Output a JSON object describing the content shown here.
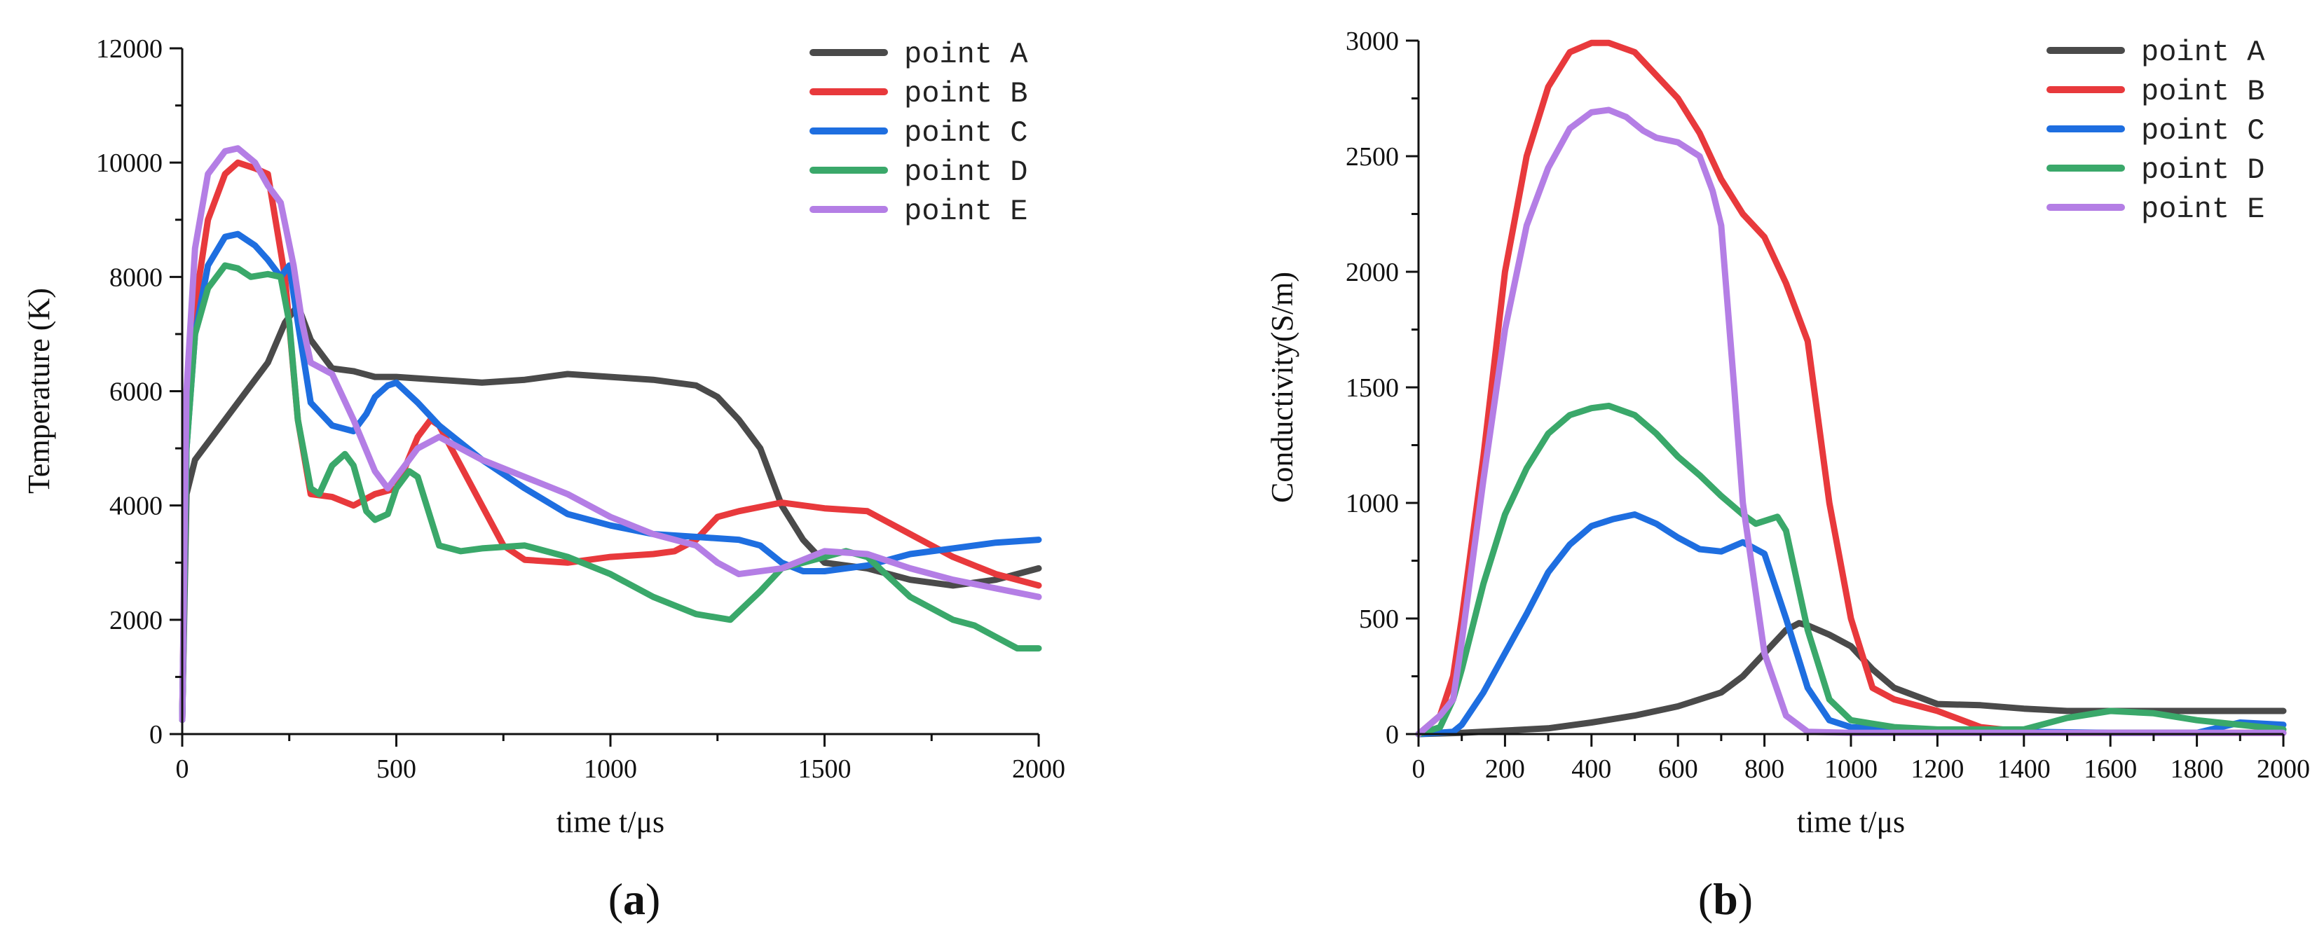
{
  "chart_data": [
    {
      "type": "line",
      "panel_label": "(a)",
      "xlabel": "time t/μs",
      "ylabel": "Temperature (K)",
      "xlim": [
        0,
        2000
      ],
      "ylim": [
        0,
        12000
      ],
      "xticks": [
        0,
        500,
        1000,
        1500,
        2000
      ],
      "yticks": [
        0,
        2000,
        4000,
        6000,
        8000,
        10000,
        12000
      ],
      "legend_position": "top-right",
      "series": [
        {
          "name": "point A",
          "color": "#4a4a4a",
          "x": [
            0,
            10,
            30,
            60,
            100,
            150,
            200,
            240,
            270,
            300,
            350,
            400,
            450,
            500,
            600,
            700,
            800,
            900,
            1000,
            1100,
            1200,
            1250,
            1300,
            1350,
            1400,
            1450,
            1500,
            1600,
            1700,
            1800,
            1900,
            2000
          ],
          "y": [
            250,
            4200,
            4800,
            5100,
            5500,
            6000,
            6500,
            7200,
            7500,
            6900,
            6400,
            6350,
            6250,
            6250,
            6200,
            6150,
            6200,
            6300,
            6250,
            6200,
            6100,
            5900,
            5500,
            5000,
            4000,
            3400,
            3000,
            2900,
            2700,
            2600,
            2700,
            2900
          ]
        },
        {
          "name": "point B",
          "color": "#e8393c",
          "x": [
            0,
            10,
            30,
            60,
            100,
            130,
            170,
            200,
            240,
            270,
            300,
            350,
            400,
            450,
            500,
            550,
            580,
            600,
            650,
            700,
            750,
            800,
            900,
            1000,
            1100,
            1150,
            1200,
            1250,
            1300,
            1400,
            1500,
            1600,
            1700,
            1800,
            1900,
            2000
          ],
          "y": [
            250,
            5500,
            7500,
            9000,
            9800,
            10000,
            9900,
            9800,
            8000,
            5500,
            4200,
            4150,
            4000,
            4200,
            4300,
            5200,
            5500,
            5400,
            4700,
            4000,
            3300,
            3050,
            3000,
            3100,
            3150,
            3200,
            3400,
            3800,
            3900,
            4050,
            3950,
            3900,
            3500,
            3100,
            2800,
            2600
          ]
        },
        {
          "name": "point C",
          "color": "#1e6ee0",
          "x": [
            0,
            10,
            30,
            60,
            100,
            130,
            170,
            200,
            230,
            250,
            270,
            300,
            350,
            400,
            430,
            450,
            480,
            500,
            550,
            600,
            700,
            800,
            900,
            1000,
            1100,
            1200,
            1300,
            1350,
            1400,
            1450,
            1500,
            1600,
            1700,
            1800,
            1900,
            2000
          ],
          "y": [
            250,
            5000,
            7000,
            8200,
            8700,
            8750,
            8550,
            8300,
            8000,
            8200,
            7200,
            5800,
            5400,
            5300,
            5600,
            5900,
            6100,
            6150,
            5800,
            5400,
            4800,
            4300,
            3850,
            3650,
            3500,
            3450,
            3400,
            3300,
            3000,
            2850,
            2850,
            2950,
            3150,
            3250,
            3350,
            3400
          ]
        },
        {
          "name": "point D",
          "color": "#3aa86a",
          "x": [
            0,
            10,
            30,
            60,
            100,
            130,
            160,
            200,
            230,
            250,
            270,
            300,
            320,
            350,
            380,
            400,
            430,
            450,
            480,
            500,
            530,
            550,
            600,
            650,
            700,
            800,
            900,
            1000,
            1100,
            1200,
            1280,
            1350,
            1400,
            1500,
            1550,
            1600,
            1700,
            1800,
            1850,
            1900,
            1950,
            2000
          ],
          "y": [
            250,
            5000,
            7000,
            7800,
            8200,
            8150,
            8000,
            8050,
            8000,
            7200,
            5500,
            4300,
            4200,
            4700,
            4900,
            4700,
            3900,
            3750,
            3850,
            4300,
            4600,
            4500,
            3300,
            3200,
            3250,
            3300,
            3100,
            2800,
            2400,
            2100,
            2000,
            2500,
            2900,
            3100,
            3200,
            3100,
            2400,
            2000,
            1900,
            1700,
            1500,
            1500
          ]
        },
        {
          "name": "point E",
          "color": "#b47ee5",
          "x": [
            0,
            10,
            30,
            60,
            100,
            130,
            170,
            200,
            230,
            260,
            280,
            300,
            350,
            400,
            450,
            480,
            500,
            550,
            600,
            700,
            800,
            900,
            1000,
            1100,
            1200,
            1250,
            1300,
            1400,
            1500,
            1600,
            1700,
            1800,
            1900,
            2000
          ],
          "y": [
            250,
            6000,
            8500,
            9800,
            10200,
            10250,
            10000,
            9600,
            9300,
            8200,
            7200,
            6500,
            6300,
            5500,
            4600,
            4300,
            4500,
            5000,
            5200,
            4800,
            4500,
            4200,
            3800,
            3500,
            3300,
            3000,
            2800,
            2900,
            3200,
            3150,
            2900,
            2700,
            2550,
            2400
          ]
        }
      ]
    },
    {
      "type": "line",
      "panel_label": "(b)",
      "xlabel": "time t/μs",
      "ylabel": "Conductivity(S/m)",
      "xlim": [
        0,
        2000
      ],
      "ylim": [
        0,
        3000
      ],
      "xticks": [
        0,
        200,
        400,
        600,
        800,
        1000,
        1200,
        1400,
        1600,
        1800,
        2000
      ],
      "yticks": [
        0,
        500,
        1000,
        1500,
        2000,
        2500,
        3000
      ],
      "legend_position": "top-right",
      "series": [
        {
          "name": "point A",
          "color": "#4a4a4a",
          "x": [
            0,
            100,
            200,
            300,
            400,
            500,
            600,
            700,
            750,
            800,
            850,
            880,
            900,
            950,
            1000,
            1050,
            1100,
            1200,
            1300,
            1400,
            1500,
            1600,
            1700,
            1800,
            1900,
            2000
          ],
          "y": [
            0,
            5,
            15,
            25,
            50,
            80,
            120,
            180,
            250,
            350,
            450,
            480,
            470,
            430,
            380,
            280,
            200,
            130,
            125,
            110,
            100,
            100,
            100,
            100,
            100,
            100
          ]
        },
        {
          "name": "point B",
          "color": "#e8393c",
          "x": [
            0,
            50,
            80,
            100,
            150,
            200,
            250,
            300,
            350,
            400,
            440,
            500,
            550,
            600,
            650,
            700,
            750,
            800,
            850,
            900,
            950,
            1000,
            1050,
            1100,
            1200,
            1300,
            1400,
            1500,
            1600,
            1700,
            1800,
            1900,
            2000
          ],
          "y": [
            0,
            80,
            250,
            500,
            1200,
            2000,
            2500,
            2800,
            2950,
            2990,
            2990,
            2950,
            2850,
            2750,
            2600,
            2400,
            2250,
            2150,
            1950,
            1700,
            1000,
            500,
            200,
            150,
            100,
            30,
            10,
            5,
            5,
            5,
            5,
            5,
            5
          ]
        },
        {
          "name": "point C",
          "color": "#1e6ee0",
          "x": [
            0,
            80,
            100,
            150,
            200,
            250,
            300,
            350,
            400,
            450,
            500,
            550,
            600,
            650,
            700,
            750,
            800,
            850,
            900,
            950,
            1000,
            1100,
            1200,
            1400,
            1600,
            1800,
            1900,
            2000
          ],
          "y": [
            0,
            10,
            40,
            180,
            350,
            520,
            700,
            820,
            900,
            930,
            950,
            910,
            850,
            800,
            790,
            830,
            780,
            500,
            200,
            60,
            30,
            20,
            15,
            10,
            5,
            5,
            50,
            40
          ]
        },
        {
          "name": "point D",
          "color": "#3aa86a",
          "x": [
            0,
            50,
            80,
            100,
            150,
            200,
            250,
            300,
            350,
            400,
            440,
            500,
            550,
            600,
            650,
            700,
            750,
            780,
            830,
            850,
            900,
            950,
            1000,
            1100,
            1200,
            1400,
            1500,
            1600,
            1700,
            1800,
            2000
          ],
          "y": [
            0,
            30,
            150,
            280,
            650,
            950,
            1150,
            1300,
            1380,
            1410,
            1420,
            1380,
            1300,
            1200,
            1120,
            1030,
            950,
            910,
            940,
            880,
            450,
            150,
            60,
            30,
            20,
            20,
            70,
            100,
            90,
            60,
            20
          ]
        },
        {
          "name": "point E",
          "color": "#b47ee5",
          "x": [
            0,
            50,
            80,
            100,
            150,
            200,
            250,
            300,
            350,
            400,
            440,
            480,
            520,
            550,
            600,
            650,
            680,
            700,
            730,
            750,
            800,
            850,
            900,
            1000,
            1200,
            1400,
            1600,
            1800,
            2000
          ],
          "y": [
            0,
            80,
            150,
            400,
            1100,
            1750,
            2200,
            2450,
            2620,
            2690,
            2700,
            2670,
            2610,
            2580,
            2560,
            2500,
            2350,
            2200,
            1500,
            1000,
            350,
            80,
            10,
            5,
            5,
            5,
            5,
            5,
            5
          ]
        }
      ]
    }
  ]
}
